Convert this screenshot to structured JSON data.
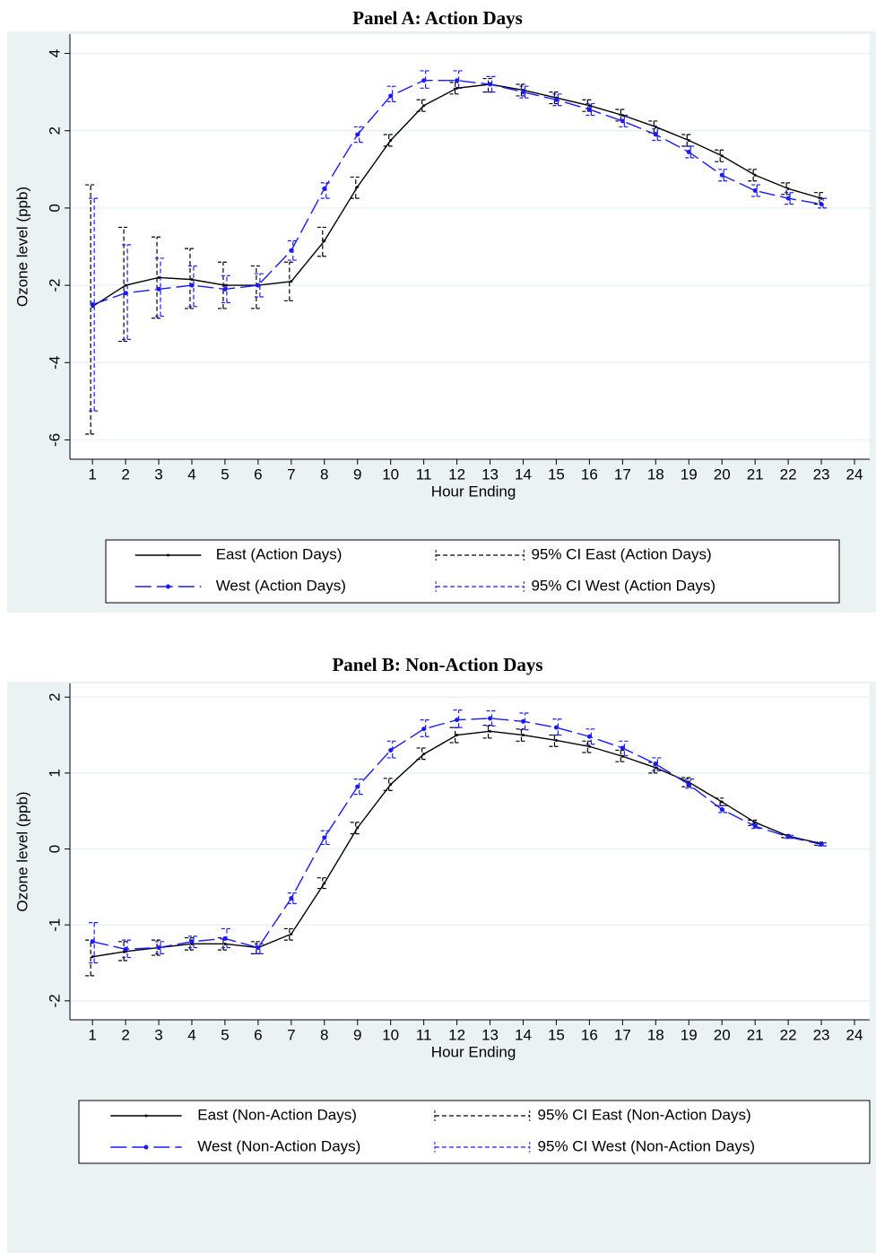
{
  "chart_data": [
    {
      "type": "line",
      "title": "Panel A: Action Days",
      "xlabel": "Hour Ending",
      "ylabel": "Ozone level (ppb)",
      "x": [
        1,
        2,
        3,
        4,
        5,
        6,
        7,
        8,
        9,
        10,
        11,
        12,
        13,
        14,
        15,
        16,
        17,
        18,
        19,
        20,
        21,
        22,
        23
      ],
      "xlim": [
        0.32,
        24.46
      ],
      "xticks": [
        1,
        2,
        3,
        4,
        5,
        6,
        7,
        8,
        9,
        10,
        11,
        12,
        13,
        14,
        15,
        16,
        17,
        18,
        19,
        20,
        21,
        22,
        23,
        24
      ],
      "ylim": [
        -6.5,
        4.5
      ],
      "yticks": [
        -6,
        -4,
        -2,
        0,
        2,
        4
      ],
      "grid": true,
      "series": [
        {
          "name": "East (Action Days)",
          "color": "#000000",
          "line_style": "solid",
          "values": [
            -2.55,
            -2.0,
            -1.8,
            -1.85,
            -2.0,
            -2.0,
            -1.9,
            -0.85,
            0.55,
            1.75,
            2.65,
            3.1,
            3.2,
            3.05,
            2.85,
            2.65,
            2.4,
            2.1,
            1.75,
            1.35,
            0.85,
            0.5,
            0.25
          ]
        },
        {
          "name": "West (Action Days)",
          "color": "#1a1aff",
          "line_style": "dash",
          "values": [
            -2.5,
            -2.2,
            -2.1,
            -2.0,
            -2.1,
            -2.0,
            -1.1,
            0.5,
            1.9,
            2.9,
            3.3,
            3.3,
            3.2,
            3.0,
            2.8,
            2.55,
            2.25,
            1.9,
            1.45,
            0.85,
            0.45,
            0.25,
            0.1
          ]
        }
      ],
      "ci": [
        {
          "name": "95% CI East (Action Days)",
          "color": "#000000",
          "lower": [
            -5.85,
            -3.45,
            -2.85,
            -2.6,
            -2.6,
            -2.6,
            -2.4,
            -1.25,
            0.25,
            1.6,
            2.5,
            2.95,
            3.0,
            2.9,
            2.7,
            2.5,
            2.25,
            1.95,
            1.6,
            1.2,
            0.7,
            0.35,
            0.1
          ],
          "upper": [
            0.6,
            -0.5,
            -0.75,
            -1.05,
            -1.4,
            -1.5,
            -1.4,
            -0.5,
            0.8,
            1.9,
            2.8,
            3.25,
            3.35,
            3.2,
            3.0,
            2.8,
            2.55,
            2.25,
            1.9,
            1.5,
            1.0,
            0.65,
            0.4
          ]
        },
        {
          "name": "95% CI West (Action Days)",
          "color": "#1a1aff",
          "lower": [
            -5.25,
            -3.4,
            -2.8,
            -2.55,
            -2.45,
            -2.3,
            -1.35,
            0.25,
            1.7,
            2.75,
            3.1,
            3.1,
            3.0,
            2.85,
            2.65,
            2.4,
            2.1,
            1.75,
            1.3,
            0.7,
            0.3,
            0.1,
            0.0
          ],
          "upper": [
            0.25,
            -0.95,
            -1.3,
            -1.5,
            -1.75,
            -1.7,
            -0.85,
            0.65,
            2.1,
            3.15,
            3.55,
            3.55,
            3.4,
            3.15,
            2.95,
            2.7,
            2.4,
            2.05,
            1.6,
            1.0,
            0.6,
            0.4,
            0.25
          ]
        }
      ]
    },
    {
      "type": "line",
      "title": "Panel B: Non-Action Days",
      "xlabel": "Hour Ending",
      "ylabel": "Ozone level (ppb)",
      "x": [
        1,
        2,
        3,
        4,
        5,
        6,
        7,
        8,
        9,
        10,
        11,
        12,
        13,
        14,
        15,
        16,
        17,
        18,
        19,
        20,
        21,
        22,
        23
      ],
      "xlim": [
        0.32,
        24.46
      ],
      "xticks": [
        1,
        2,
        3,
        4,
        5,
        6,
        7,
        8,
        9,
        10,
        11,
        12,
        13,
        14,
        15,
        16,
        17,
        18,
        19,
        20,
        21,
        22,
        23,
        24
      ],
      "ylim": [
        -2.25,
        2.18
      ],
      "yticks": [
        -2,
        -1,
        0,
        1,
        2
      ],
      "grid": true,
      "series": [
        {
          "name": "East (Non-Action Days)",
          "color": "#000000",
          "line_style": "solid",
          "values": [
            -1.42,
            -1.35,
            -1.3,
            -1.25,
            -1.25,
            -1.3,
            -1.12,
            -0.45,
            0.28,
            0.85,
            1.25,
            1.5,
            1.55,
            1.5,
            1.43,
            1.35,
            1.22,
            1.07,
            0.88,
            0.62,
            0.35,
            0.17,
            0.07
          ]
        },
        {
          "name": "West (Non-Action Days)",
          "color": "#1a1aff",
          "line_style": "dash",
          "values": [
            -1.22,
            -1.32,
            -1.3,
            -1.22,
            -1.18,
            -1.3,
            -0.65,
            0.15,
            0.82,
            1.3,
            1.58,
            1.7,
            1.72,
            1.68,
            1.6,
            1.48,
            1.33,
            1.12,
            0.85,
            0.52,
            0.3,
            0.16,
            0.06
          ]
        }
      ],
      "ci": [
        {
          "name": "95% CI East (Non-Action Days)",
          "color": "#000000",
          "lower": [
            -1.67,
            -1.47,
            -1.4,
            -1.33,
            -1.33,
            -1.38,
            -1.2,
            -0.52,
            0.2,
            0.77,
            1.18,
            1.4,
            1.46,
            1.42,
            1.35,
            1.27,
            1.15,
            1.0,
            0.82,
            0.57,
            0.31,
            0.15,
            0.05
          ],
          "upper": [
            -1.2,
            -1.22,
            -1.2,
            -1.17,
            -1.17,
            -1.22,
            -1.05,
            -0.38,
            0.35,
            0.93,
            1.33,
            1.6,
            1.63,
            1.58,
            1.5,
            1.42,
            1.3,
            1.14,
            0.94,
            0.67,
            0.38,
            0.19,
            0.09
          ]
        },
        {
          "name": "95% CI West (Non-Action Days)",
          "color": "#1a1aff",
          "lower": [
            -1.5,
            -1.43,
            -1.38,
            -1.3,
            -1.3,
            -1.38,
            -0.72,
            0.06,
            0.72,
            1.2,
            1.48,
            1.6,
            1.62,
            1.57,
            1.5,
            1.38,
            1.23,
            1.03,
            0.8,
            0.48,
            0.27,
            0.14,
            0.04
          ],
          "upper": [
            -0.97,
            -1.2,
            -1.22,
            -1.15,
            -1.05,
            -1.25,
            -0.58,
            0.24,
            0.92,
            1.42,
            1.7,
            1.83,
            1.82,
            1.79,
            1.71,
            1.58,
            1.42,
            1.2,
            0.92,
            0.57,
            0.33,
            0.18,
            0.08
          ]
        }
      ]
    }
  ]
}
